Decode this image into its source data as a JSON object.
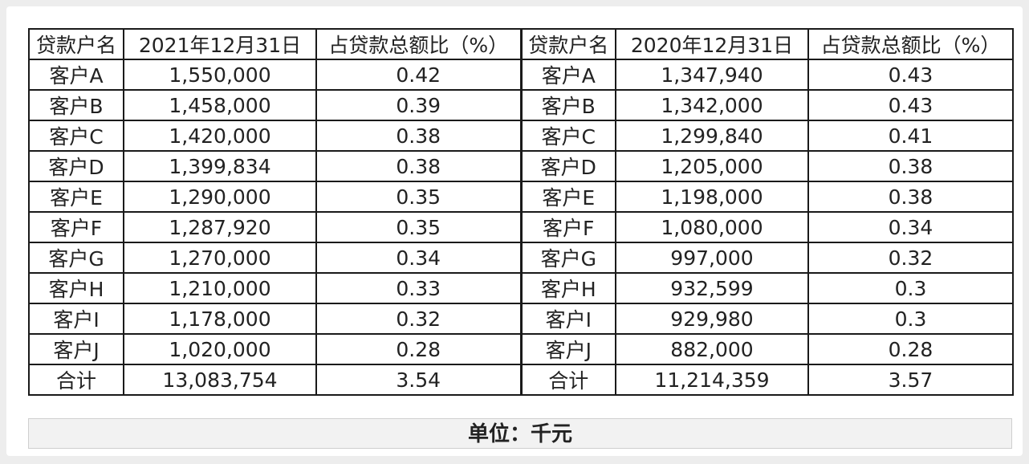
{
  "table": {
    "headers": [
      "贷款户名",
      "2021年12月31日",
      "占贷款总额比（%）",
      "贷款户名",
      "2020年12月31日",
      "占贷款总额比（%）"
    ],
    "rows": [
      [
        "客户A",
        "1,550,000",
        "0.42",
        "客户A",
        "1,347,940",
        "0.43"
      ],
      [
        "客户B",
        "1,458,000",
        "0.39",
        "客户B",
        "1,342,000",
        "0.43"
      ],
      [
        "客户C",
        "1,420,000",
        "0.38",
        "客户C",
        "1,299,840",
        "0.41"
      ],
      [
        "客户D",
        "1,399,834",
        "0.38",
        "客户D",
        "1,205,000",
        "0.38"
      ],
      [
        "客户E",
        "1,290,000",
        "0.35",
        "客户E",
        "1,198,000",
        "0.38"
      ],
      [
        "客户F",
        "1,287,920",
        "0.35",
        "客户F",
        "1,080,000",
        "0.34"
      ],
      [
        "客户G",
        "1,270,000",
        "0.34",
        "客户G",
        "997,000",
        "0.32"
      ],
      [
        "客户H",
        "1,210,000",
        "0.33",
        "客户H",
        "932,599",
        "0.3"
      ],
      [
        "客户I",
        "1,178,000",
        "0.32",
        "客户I",
        "929,980",
        "0.3"
      ],
      [
        "客户J",
        "1,020,000",
        "0.28",
        "客户J",
        "882,000",
        "0.28"
      ],
      [
        "合计",
        "13,083,754",
        "3.54",
        "合计",
        "11,214,359",
        "3.57"
      ]
    ]
  },
  "unit": "单位：千元"
}
